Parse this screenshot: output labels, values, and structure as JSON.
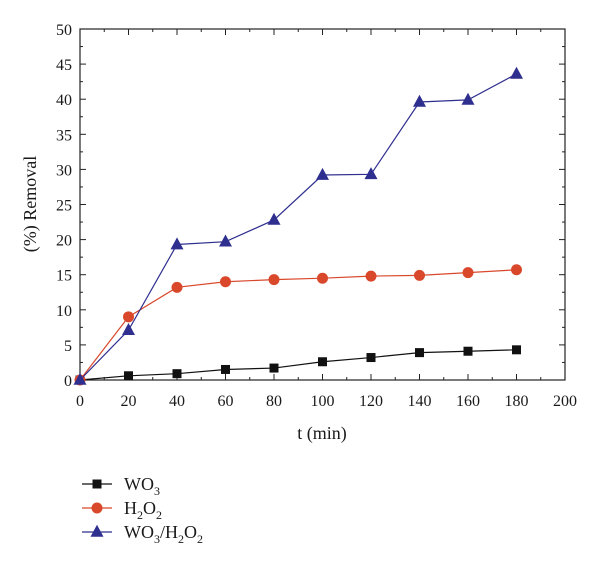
{
  "chart_data": {
    "type": "line",
    "title": "",
    "xlabel": "t (min)",
    "ylabel": "(%) Removal",
    "xlim": [
      0,
      200
    ],
    "ylim": [
      0,
      50
    ],
    "xticks": [
      0,
      20,
      40,
      60,
      80,
      100,
      120,
      140,
      160,
      180,
      200
    ],
    "yticks": [
      0,
      5,
      10,
      15,
      20,
      25,
      30,
      35,
      40,
      45,
      50
    ],
    "grid": false,
    "legend_position": "below",
    "x": [
      0,
      20,
      40,
      60,
      80,
      100,
      120,
      140,
      160,
      180
    ],
    "series": [
      {
        "name": "WO3",
        "legend_parts": [
          [
            "WO",
            false
          ],
          [
            "3",
            true
          ]
        ],
        "marker": "square",
        "color": "#111111",
        "values": [
          0,
          0.6,
          0.9,
          1.5,
          1.7,
          2.6,
          3.2,
          3.9,
          4.1,
          4.3
        ]
      },
      {
        "name": "H2O2",
        "legend_parts": [
          [
            "H",
            false
          ],
          [
            "2",
            true
          ],
          [
            "O",
            false
          ],
          [
            "2",
            true
          ]
        ],
        "marker": "circle",
        "color": "#d9482b",
        "line_color": "#d9482b",
        "values": [
          0,
          9.0,
          13.2,
          14.0,
          14.3,
          14.5,
          14.8,
          14.9,
          15.3,
          15.7
        ]
      },
      {
        "name": "WO3/H2O2",
        "legend_parts": [
          [
            "WO",
            false
          ],
          [
            "3",
            true
          ],
          [
            "/H",
            false
          ],
          [
            "2",
            true
          ],
          [
            "O",
            false
          ],
          [
            "2",
            true
          ]
        ],
        "marker": "triangle",
        "color": "#2f2f8f",
        "values": [
          0,
          7.1,
          19.3,
          19.7,
          22.8,
          29.2,
          29.3,
          39.6,
          39.9,
          43.6
        ]
      }
    ]
  }
}
